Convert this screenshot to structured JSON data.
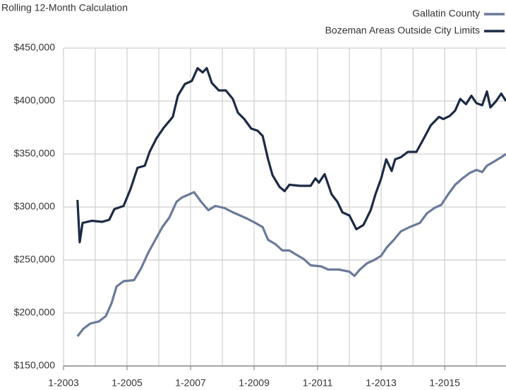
{
  "chart_data": {
    "type": "line",
    "title": "Rolling 12-Month Calculation",
    "xlim": [
      2003,
      2016.93
    ],
    "xticks": [
      {
        "value": 2003,
        "label": "1-2003"
      },
      {
        "value": 2005,
        "label": "1-2005"
      },
      {
        "value": 2007,
        "label": "1-2007"
      },
      {
        "value": 2009,
        "label": "1-2009"
      },
      {
        "value": 2011,
        "label": "1-2011"
      },
      {
        "value": 2013,
        "label": "1-2013"
      },
      {
        "value": 2015,
        "label": "1-2015"
      }
    ],
    "ylim": [
      150000,
      450000
    ],
    "yticks": [
      {
        "value": 150000,
        "label": "$150,000"
      },
      {
        "value": 200000,
        "label": "$200,000"
      },
      {
        "value": 250000,
        "label": "$250,000"
      },
      {
        "value": 300000,
        "label": "$300,000"
      },
      {
        "value": 350000,
        "label": "$350,000"
      },
      {
        "value": 400000,
        "label": "$400,000"
      },
      {
        "value": 450000,
        "label": "$450,000"
      }
    ],
    "grid": true,
    "legend": "top-right",
    "series": [
      {
        "name": "Gallatin County",
        "color": "#6b7a99",
        "x": [
          2003.44,
          2003.62,
          2003.84,
          2004.11,
          2004.33,
          2004.51,
          2004.67,
          2004.89,
          2005.22,
          2005.44,
          2005.67,
          2005.89,
          2006.11,
          2006.33,
          2006.56,
          2006.73,
          2006.96,
          2007.11,
          2007.33,
          2007.56,
          2007.78,
          2008.07,
          2008.33,
          2008.56,
          2008.78,
          2009.04,
          2009.27,
          2009.44,
          2009.67,
          2009.89,
          2010.11,
          2010.33,
          2010.56,
          2010.78,
          2011.11,
          2011.33,
          2011.67,
          2012.0,
          2012.16,
          2012.33,
          2012.56,
          2012.78,
          2013.0,
          2013.18,
          2013.4,
          2013.62,
          2013.89,
          2014.22,
          2014.44,
          2014.67,
          2014.89,
          2015.11,
          2015.33,
          2015.56,
          2015.78,
          2016.0,
          2016.18,
          2016.33,
          2016.56,
          2016.78,
          2016.93
        ],
        "values": [
          178000,
          185000,
          190000,
          192000,
          197000,
          209000,
          225000,
          230000,
          231000,
          242000,
          257000,
          269000,
          281000,
          290000,
          305000,
          309000,
          312000,
          314000,
          305000,
          297000,
          301000,
          299000,
          295000,
          292000,
          289000,
          285000,
          281000,
          269000,
          265000,
          259000,
          259000,
          255000,
          251000,
          245000,
          244000,
          241000,
          241000,
          239000,
          235000,
          241000,
          247000,
          250000,
          254000,
          262000,
          269000,
          277000,
          281000,
          285000,
          294000,
          299000,
          302000,
          312000,
          321000,
          327000,
          332000,
          335000,
          333000,
          339000,
          343000,
          347000,
          350000
        ]
      },
      {
        "name": "Bozeman Areas Outside City Limits",
        "color": "#1c2a44",
        "x": [
          2003.44,
          2003.51,
          2003.6,
          2003.89,
          2004.22,
          2004.44,
          2004.6,
          2004.89,
          2005.11,
          2005.33,
          2005.56,
          2005.71,
          2005.93,
          2006.16,
          2006.44,
          2006.6,
          2006.82,
          2007.04,
          2007.22,
          2007.38,
          2007.51,
          2007.67,
          2007.89,
          2008.11,
          2008.33,
          2008.49,
          2008.69,
          2008.91,
          2009.11,
          2009.27,
          2009.44,
          2009.58,
          2009.8,
          2009.96,
          2010.11,
          2010.44,
          2010.78,
          2010.93,
          2011.04,
          2011.22,
          2011.44,
          2011.62,
          2011.78,
          2012.0,
          2012.22,
          2012.44,
          2012.67,
          2012.82,
          2013.0,
          2013.16,
          2013.33,
          2013.44,
          2013.62,
          2013.84,
          2014.11,
          2014.33,
          2014.56,
          2014.82,
          2014.96,
          2015.16,
          2015.33,
          2015.49,
          2015.67,
          2015.84,
          2016.0,
          2016.18,
          2016.33,
          2016.44,
          2016.62,
          2016.78,
          2016.93
        ],
        "values": [
          306700,
          266700,
          285000,
          287000,
          286000,
          288000,
          298000,
          301000,
          317000,
          337000,
          339000,
          352000,
          365000,
          375000,
          385000,
          405000,
          416000,
          419000,
          431000,
          427000,
          431000,
          417000,
          410000,
          410000,
          402000,
          389000,
          383000,
          374000,
          372000,
          367000,
          345000,
          330000,
          319000,
          315000,
          321000,
          320000,
          320000,
          327000,
          323000,
          331000,
          312000,
          305000,
          295000,
          292000,
          279000,
          283000,
          297000,
          312000,
          327000,
          345000,
          334000,
          345000,
          347000,
          352000,
          352000,
          364000,
          377000,
          385000,
          383000,
          386000,
          391000,
          402000,
          397000,
          405000,
          398000,
          396000,
          409000,
          394000,
          400000,
          407000,
          400000
        ]
      }
    ]
  }
}
